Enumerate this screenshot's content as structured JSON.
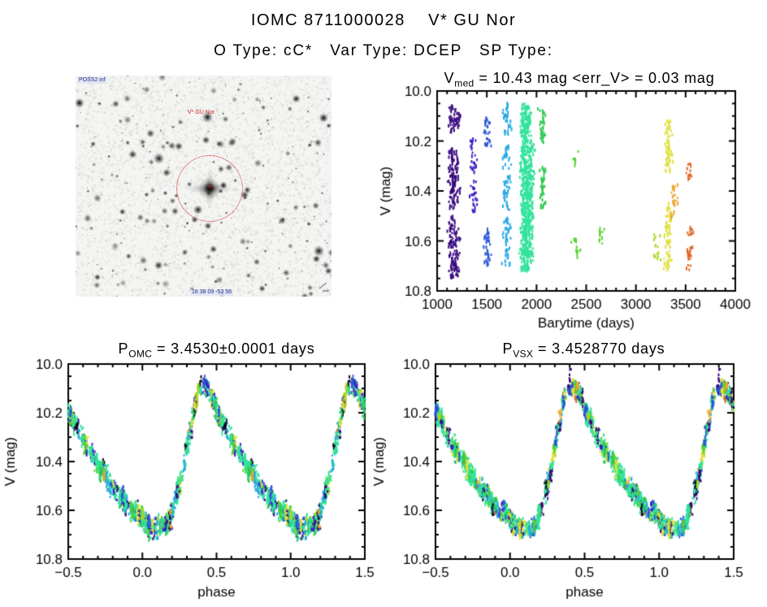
{
  "header": {
    "line1": "IOMC 8711000028    V* GU Nor",
    "line2": "O Type: cC*   Var Type: DCEP   SP Type:"
  },
  "finder": {
    "target_label": "V* GU Nor",
    "survey_label": "POSS2 inf",
    "coords_label": "16 38 09 -53 58",
    "marker_color": "#d42020"
  },
  "palette": {
    "purple": "#38097f",
    "indigo": "#3a22c8",
    "blue": "#2a58d8",
    "cyan": "#2aa8e4",
    "teal": "#33e39c",
    "green": "#2cc84f",
    "green2": "#52d42e",
    "ygreen": "#a8d822",
    "yellow": "#e0e040",
    "orange": "#eca428",
    "orangered": "#e06420",
    "black": "#0c0c24"
  },
  "chart_data": [
    {
      "id": "timeseries",
      "type": "scatter",
      "title_parts": {
        "pre": "V",
        "sub": "med",
        "post": " = 10.43 mag <err_V> = 0.03 mag"
      },
      "xlabel": "Barytime (days)",
      "ylabel": "V (mag)",
      "xlim": [
        1000,
        4000
      ],
      "ylim": [
        10.0,
        10.8
      ],
      "y_inverted": true,
      "grid": false,
      "xticks": {
        "values": [
          1000,
          1500,
          2000,
          2500,
          3000,
          3500,
          4000
        ],
        "labels": [
          "1000",
          "1500",
          "2000",
          "2500",
          "3000",
          "3500",
          "4000"
        ],
        "minor_step": 100
      },
      "yticks": {
        "values": [
          10.0,
          10.2,
          10.4,
          10.6,
          10.8
        ],
        "labels": [
          "10.0",
          "10.2",
          "10.4",
          "10.6",
          "10.8"
        ],
        "minor_step": 0.05
      },
      "clusters": [
        {
          "t": 1150,
          "color": "purple",
          "w": 2.0,
          "segments": [
            [
              10.06,
              10.17
            ],
            [
              10.23,
              10.48
            ],
            [
              10.5,
              10.75
            ]
          ]
        },
        {
          "t": 1195,
          "color": "purple",
          "w": 1.4,
          "segments": [
            [
              10.08,
              10.16
            ],
            [
              10.24,
              10.45
            ],
            [
              10.55,
              10.74
            ]
          ]
        },
        {
          "t": 1365,
          "color": "indigo",
          "w": 1.2,
          "segments": [
            [
              10.19,
              10.33
            ],
            [
              10.36,
              10.49
            ]
          ]
        },
        {
          "t": 1505,
          "color": "blue",
          "w": 1.5,
          "segments": [
            [
              10.1,
              10.22
            ],
            [
              10.54,
              10.7
            ]
          ]
        },
        {
          "t": 1700,
          "color": "cyan",
          "w": 1.6,
          "segments": [
            [
              10.05,
              10.18
            ],
            [
              10.22,
              10.31
            ],
            [
              10.34,
              10.48
            ],
            [
              10.51,
              10.7
            ]
          ]
        },
        {
          "t": 1875,
          "color": "teal",
          "w": 2.8,
          "segments": [
            [
              10.05,
              10.72
            ]
          ]
        },
        {
          "t": 1910,
          "color": "teal",
          "w": 2.8,
          "segments": [
            [
              10.06,
              10.72
            ]
          ]
        },
        {
          "t": 1945,
          "color": "teal",
          "w": 1.4,
          "segments": [
            [
              10.2,
              10.7
            ]
          ]
        },
        {
          "t": 2060,
          "color": "green",
          "w": 1.6,
          "segments": [
            [
              10.07,
              10.22
            ],
            [
              10.3,
              10.47
            ]
          ]
        },
        {
          "t": 2395,
          "color": "green2",
          "w": 0.9,
          "segments": [
            [
              10.24,
              10.3
            ],
            [
              10.59,
              10.67
            ]
          ]
        },
        {
          "t": 2640,
          "color": "green2",
          "w": 0.9,
          "segments": [
            [
              10.54,
              10.62
            ]
          ]
        },
        {
          "t": 3205,
          "color": "ygreen",
          "w": 0.9,
          "segments": [
            [
              10.57,
              10.68
            ]
          ]
        },
        {
          "t": 3325,
          "color": "yellow",
          "w": 1.8,
          "segments": [
            [
              10.12,
              10.33
            ],
            [
              10.45,
              10.72
            ]
          ]
        },
        {
          "t": 3385,
          "color": "orange",
          "w": 1.1,
          "segments": [
            [
              10.37,
              10.52
            ]
          ]
        },
        {
          "t": 3540,
          "color": "orangered",
          "w": 1.1,
          "segments": [
            [
              10.28,
              10.36
            ],
            [
              10.52,
              10.58
            ],
            [
              10.61,
              10.72
            ]
          ]
        }
      ]
    },
    {
      "id": "phase_omc",
      "type": "scatter",
      "title_parts": {
        "pre": "P",
        "sub": "OMC",
        "post": " = 3.4530±0.0001 days"
      },
      "xlabel": "phase",
      "ylabel": "V (mag)",
      "xlim": [
        -0.5,
        1.5
      ],
      "ylim": [
        10.0,
        10.8
      ],
      "y_inverted": true,
      "grid": false,
      "xticks": {
        "values": [
          -0.5,
          0.0,
          0.5,
          1.0,
          1.5
        ],
        "labels": [
          "−0.5",
          "0.0",
          "0.5",
          "1.0",
          "1.5"
        ],
        "minor_step": 0.1
      },
      "yticks": {
        "values": [
          10.0,
          10.2,
          10.4,
          10.6,
          10.8
        ],
        "labels": [
          "10.0",
          "10.2",
          "10.4",
          "10.6",
          "10.8"
        ],
        "minor_step": 0.05
      },
      "mean_curve": [
        [
          0.0,
          10.63
        ],
        [
          0.05,
          10.67
        ],
        [
          0.1,
          10.68
        ],
        [
          0.17,
          10.66
        ],
        [
          0.22,
          10.57
        ],
        [
          0.27,
          10.45
        ],
        [
          0.32,
          10.28
        ],
        [
          0.37,
          10.12
        ],
        [
          0.41,
          10.08
        ],
        [
          0.45,
          10.11
        ],
        [
          0.5,
          10.18
        ],
        [
          0.55,
          10.25
        ],
        [
          0.6,
          10.31
        ],
        [
          0.65,
          10.36
        ],
        [
          0.7,
          10.41
        ],
        [
          0.75,
          10.46
        ],
        [
          0.8,
          10.51
        ],
        [
          0.85,
          10.55
        ],
        [
          0.9,
          10.58
        ],
        [
          0.95,
          10.61
        ],
        [
          1.0,
          10.63
        ]
      ],
      "epoch_weights": {
        "teal": 0.33,
        "green": 0.1,
        "green2": 0.04,
        "cyan": 0.08,
        "blue": 0.07,
        "indigo": 0.05,
        "purple": 0.1,
        "yellow": 0.07,
        "ygreen": 0.05,
        "orange": 0.03,
        "orangered": 0.03,
        "black": 0.05
      }
    },
    {
      "id": "phase_vsx",
      "type": "scatter",
      "title_parts": {
        "pre": "P",
        "sub": "VSX",
        "post": " = 3.4528770 days"
      },
      "xlabel": "phase",
      "ylabel": "V (mag)",
      "xlim": [
        -0.5,
        1.5
      ],
      "ylim": [
        10.0,
        10.8
      ],
      "y_inverted": true,
      "grid": false,
      "xticks": {
        "values": [
          -0.5,
          0.0,
          0.5,
          1.0,
          1.5
        ],
        "labels": [
          "−0.5",
          "0.0",
          "0.5",
          "1.0",
          "1.5"
        ],
        "minor_step": 0.1
      },
      "yticks": {
        "values": [
          10.0,
          10.2,
          10.4,
          10.6,
          10.8
        ],
        "labels": [
          "10.0",
          "10.2",
          "10.4",
          "10.6",
          "10.8"
        ],
        "minor_step": 0.05
      },
      "mean_curve": [
        [
          0.0,
          10.63
        ],
        [
          0.05,
          10.67
        ],
        [
          0.1,
          10.68
        ],
        [
          0.17,
          10.66
        ],
        [
          0.22,
          10.57
        ],
        [
          0.27,
          10.45
        ],
        [
          0.32,
          10.28
        ],
        [
          0.37,
          10.12
        ],
        [
          0.41,
          10.08
        ],
        [
          0.45,
          10.11
        ],
        [
          0.5,
          10.18
        ],
        [
          0.55,
          10.25
        ],
        [
          0.6,
          10.31
        ],
        [
          0.65,
          10.36
        ],
        [
          0.7,
          10.41
        ],
        [
          0.75,
          10.46
        ],
        [
          0.8,
          10.51
        ],
        [
          0.85,
          10.55
        ],
        [
          0.9,
          10.58
        ],
        [
          0.95,
          10.61
        ],
        [
          1.0,
          10.63
        ]
      ],
      "epoch_weights": {
        "teal": 0.33,
        "green": 0.1,
        "green2": 0.04,
        "cyan": 0.08,
        "blue": 0.07,
        "indigo": 0.05,
        "purple": 0.1,
        "yellow": 0.07,
        "ygreen": 0.05,
        "orange": 0.03,
        "orangered": 0.03,
        "black": 0.05
      }
    }
  ]
}
